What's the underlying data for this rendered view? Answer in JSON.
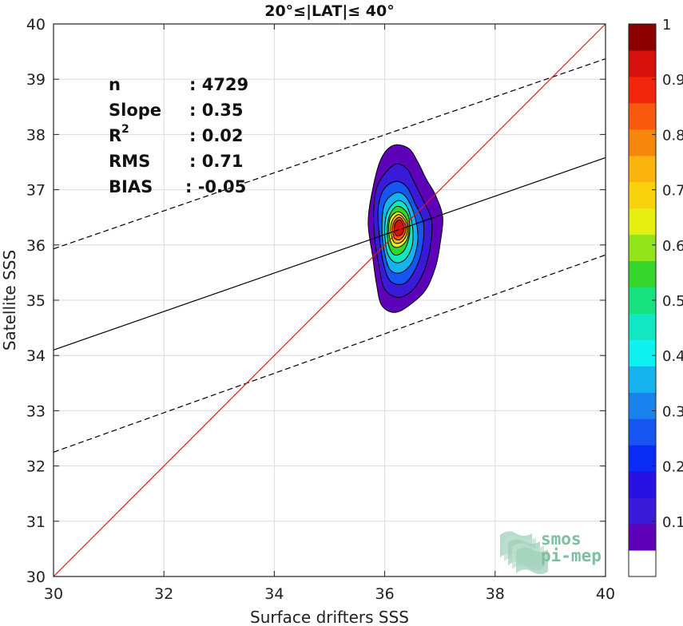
{
  "chart_data": {
    "type": "scatter",
    "title": "20°≤|LAT|≤ 40°",
    "xlabel": "Surface drifters SSS",
    "ylabel": "Satellite SSS",
    "xlim": [
      30,
      40
    ],
    "ylim": [
      30,
      40
    ],
    "xticks": [
      "30",
      "32",
      "34",
      "36",
      "38",
      "40"
    ],
    "yticks": [
      "30",
      "31",
      "32",
      "33",
      "34",
      "35",
      "36",
      "37",
      "38",
      "39",
      "40"
    ],
    "grid": true,
    "stats": [
      {
        "key": "n",
        "value": ": 4729"
      },
      {
        "key": "Slope",
        "value": ": 0.35"
      },
      {
        "key": "R",
        "sup": "2",
        "value": ": 0.02"
      },
      {
        "key": "RMS",
        "value": ": 0.71"
      },
      {
        "key": "BIAS",
        "value": ": -0.05"
      }
    ],
    "lines": {
      "identity": {
        "x": [
          30,
          40
        ],
        "y": [
          30,
          40
        ],
        "color": "#e8141b"
      },
      "fit": {
        "x": [
          30,
          40
        ],
        "y": [
          34.1,
          37.58
        ],
        "color": "#000000"
      },
      "fit_upper": {
        "x": [
          30,
          40
        ],
        "y": [
          35.93,
          39.37
        ],
        "color": "#000000",
        "dashed": true
      },
      "fit_lower": {
        "x": [
          30,
          40
        ],
        "y": [
          32.25,
          35.82
        ],
        "color": "#000000",
        "dashed": true
      }
    },
    "density": {
      "center_x": 36.25,
      "center_y": 36.3,
      "levels": [
        {
          "level": 0.05,
          "color": "#5d02b8",
          "shape": [
            [
              36.15,
              37.8
            ],
            [
              36.43,
              37.75
            ],
            [
              36.6,
              37.5
            ],
            [
              36.75,
              37.2
            ],
            [
              36.92,
              36.9
            ],
            [
              37.05,
              36.5
            ],
            [
              37.0,
              36.0
            ],
            [
              36.92,
              35.6
            ],
            [
              36.75,
              35.2
            ],
            [
              36.5,
              34.95
            ],
            [
              36.2,
              34.78
            ],
            [
              35.95,
              34.9
            ],
            [
              35.85,
              35.3
            ],
            [
              35.78,
              35.8
            ],
            [
              35.7,
              36.4
            ],
            [
              35.78,
              37.0
            ],
            [
              35.93,
              37.55
            ]
          ]
        },
        {
          "level": 0.1,
          "color": "#3a1ad9",
          "shape": [
            [
              36.17,
              37.45
            ],
            [
              36.4,
              37.38
            ],
            [
              36.55,
              37.1
            ],
            [
              36.7,
              36.8
            ],
            [
              36.85,
              36.45
            ],
            [
              36.83,
              36.0
            ],
            [
              36.72,
              35.55
            ],
            [
              36.52,
              35.2
            ],
            [
              36.25,
              35.05
            ],
            [
              36.0,
              35.2
            ],
            [
              35.9,
              35.6
            ],
            [
              35.82,
              36.1
            ],
            [
              35.8,
              36.6
            ],
            [
              35.88,
              37.1
            ]
          ]
        },
        {
          "level": 0.2,
          "color": "#1755f0",
          "shape": [
            [
              36.2,
              37.15
            ],
            [
              36.4,
              37.05
            ],
            [
              36.55,
              36.75
            ],
            [
              36.7,
              36.4
            ],
            [
              36.68,
              35.95
            ],
            [
              36.55,
              35.55
            ],
            [
              36.35,
              35.3
            ],
            [
              36.1,
              35.35
            ],
            [
              35.97,
              35.7
            ],
            [
              35.9,
              36.2
            ],
            [
              35.88,
              36.65
            ],
            [
              35.98,
              37.0
            ]
          ]
        },
        {
          "level": 0.3,
          "color": "#16b4ef",
          "shape": [
            [
              36.22,
              36.95
            ],
            [
              36.4,
              36.85
            ],
            [
              36.55,
              36.5
            ],
            [
              36.6,
              36.1
            ],
            [
              36.5,
              35.7
            ],
            [
              36.3,
              35.5
            ],
            [
              36.1,
              35.55
            ],
            [
              36.0,
              35.85
            ],
            [
              35.95,
              36.3
            ],
            [
              36.0,
              36.75
            ]
          ]
        },
        {
          "level": 0.4,
          "color": "#13e6c3",
          "shape": [
            [
              36.23,
              36.8
            ],
            [
              36.4,
              36.7
            ],
            [
              36.5,
              36.35
            ],
            [
              36.5,
              36.0
            ],
            [
              36.38,
              35.75
            ],
            [
              36.2,
              35.68
            ],
            [
              36.05,
              35.85
            ],
            [
              36.0,
              36.25
            ],
            [
              36.05,
              36.6
            ]
          ]
        },
        {
          "level": 0.5,
          "color": "#35d52c",
          "shape": [
            [
              36.25,
              36.7
            ],
            [
              36.42,
              36.55
            ],
            [
              36.45,
              36.2
            ],
            [
              36.35,
              35.9
            ],
            [
              36.18,
              35.82
            ],
            [
              36.07,
              36.0
            ],
            [
              36.05,
              36.35
            ],
            [
              36.12,
              36.6
            ]
          ]
        },
        {
          "level": 0.6,
          "color": "#e7ef12",
          "shape": [
            [
              36.25,
              36.6
            ],
            [
              36.4,
              36.45
            ],
            [
              36.42,
              36.15
            ],
            [
              36.3,
              35.98
            ],
            [
              36.15,
              35.98
            ],
            [
              36.08,
              36.2
            ],
            [
              36.1,
              36.48
            ]
          ]
        },
        {
          "level": 0.7,
          "color": "#fbb30d",
          "shape": [
            [
              36.26,
              36.55
            ],
            [
              36.38,
              36.42
            ],
            [
              36.4,
              36.2
            ],
            [
              36.3,
              36.05
            ],
            [
              36.17,
              36.05
            ],
            [
              36.11,
              36.25
            ],
            [
              36.14,
              36.45
            ]
          ]
        },
        {
          "level": 0.8,
          "color": "#f75a0c",
          "shape": [
            [
              36.27,
              36.5
            ],
            [
              36.36,
              36.38
            ],
            [
              36.37,
              36.22
            ],
            [
              36.28,
              36.1
            ],
            [
              36.18,
              36.12
            ],
            [
              36.14,
              36.28
            ],
            [
              36.17,
              36.42
            ]
          ]
        },
        {
          "level": 0.9,
          "color": "#d6100c",
          "shape": [
            [
              36.28,
              36.45
            ],
            [
              36.34,
              36.35
            ],
            [
              36.33,
              36.22
            ],
            [
              36.24,
              36.16
            ],
            [
              36.18,
              36.22
            ],
            [
              36.18,
              36.36
            ],
            [
              36.22,
              36.43
            ]
          ]
        }
      ]
    },
    "colorbar": {
      "range": [
        0,
        1
      ],
      "ticks": [
        "0.1",
        "0.2",
        "0.3",
        "0.4",
        "0.5",
        "0.6",
        "0.7",
        "0.8",
        "0.9",
        "1"
      ],
      "colors": [
        "#ffffff",
        "#5d02b8",
        "#3a1ad9",
        "#2610e2",
        "#0b2cf5",
        "#1755f0",
        "#1a82ec",
        "#16b4ef",
        "#0ff0f0",
        "#13e6c3",
        "#18e27f",
        "#35d52c",
        "#92e31a",
        "#e7ef12",
        "#f9d20e",
        "#fbb30d",
        "#f7860c",
        "#f75a0c",
        "#f1260d",
        "#d6100c",
        "#8a0000"
      ]
    },
    "logo": {
      "line1": "smos",
      "line2": "pi-mep"
    }
  }
}
